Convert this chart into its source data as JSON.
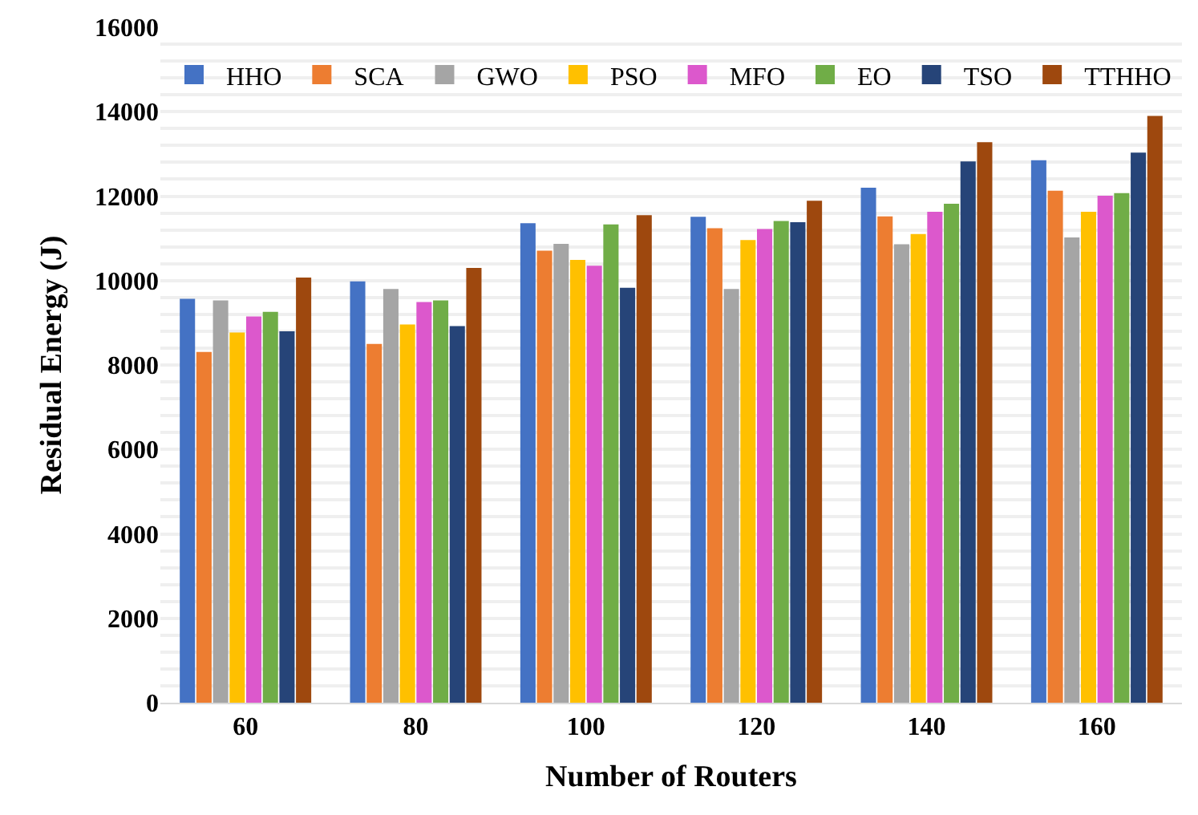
{
  "chart_data": {
    "type": "bar",
    "xlabel": "Number of Routers",
    "ylabel": "Residual Energy (J)",
    "categories": [
      "60",
      "80",
      "100",
      "120",
      "140",
      "160"
    ],
    "series": [
      {
        "name": "HHO",
        "color": "#4472c4",
        "values": [
          9570,
          9980,
          11360,
          11510,
          12200,
          12850
        ]
      },
      {
        "name": "SCA",
        "color": "#ed7d31",
        "values": [
          8310,
          8500,
          10710,
          11240,
          11520,
          12130
        ]
      },
      {
        "name": "GWO",
        "color": "#a5a5a5",
        "values": [
          9530,
          9800,
          10870,
          9800,
          10860,
          11020
        ]
      },
      {
        "name": "PSO",
        "color": "#ffc000",
        "values": [
          8770,
          8960,
          10490,
          10960,
          11100,
          11630
        ]
      },
      {
        "name": "MFO",
        "color": "#dc58cc",
        "values": [
          9150,
          9490,
          10350,
          11220,
          11630,
          12010
        ]
      },
      {
        "name": "EO",
        "color": "#70ad47",
        "values": [
          9260,
          9530,
          11330,
          11410,
          11820,
          12070
        ]
      },
      {
        "name": "TSO",
        "color": "#264478",
        "values": [
          8800,
          8920,
          9830,
          11380,
          12820,
          13030
        ]
      },
      {
        "name": "TTHHO",
        "color": "#9e480e",
        "values": [
          10070,
          10300,
          11550,
          11890,
          13280,
          13900
        ]
      }
    ],
    "ylim": [
      0,
      16000
    ],
    "yticks": [
      0,
      {
        "value": 400,
        "label": null
      },
      {
        "value": 800,
        "label": null
      },
      {
        "value": 1200,
        "label": null
      },
      {
        "value": 1600,
        "label": null
      },
      2000,
      {
        "value": 2400,
        "label": null
      },
      {
        "value": 2800,
        "label": null
      },
      {
        "value": 3200,
        "label": null
      },
      {
        "value": 3600,
        "label": null
      },
      4000,
      {
        "value": 4400,
        "label": null
      },
      {
        "value": 4800,
        "label": null
      },
      {
        "value": 5200,
        "label": null
      },
      {
        "value": 5600,
        "label": null
      },
      6000,
      {
        "value": 6400,
        "label": null
      },
      {
        "value": 6800,
        "label": null
      },
      {
        "value": 7200,
        "label": null
      },
      {
        "value": 7600,
        "label": null
      },
      8000,
      {
        "value": 8400,
        "label": null
      },
      {
        "value": 8800,
        "label": null
      },
      {
        "value": 9200,
        "label": null
      },
      {
        "value": 9600,
        "label": null
      },
      10000,
      {
        "value": 10400,
        "label": null
      },
      {
        "value": 10800,
        "label": null
      },
      {
        "value": 11200,
        "label": null
      },
      {
        "value": 11600,
        "label": null
      },
      12000,
      {
        "value": 12400,
        "label": null
      },
      {
        "value": 12800,
        "label": null
      },
      {
        "value": 13200,
        "label": null
      },
      {
        "value": 13600,
        "label": null
      },
      14000,
      {
        "value": 14400,
        "label": null
      },
      {
        "value": 14800,
        "label": null
      },
      {
        "value": 15200,
        "label": null
      },
      {
        "value": 15600,
        "label": null
      },
      16000
    ],
    "grid": "y",
    "legend": "top"
  }
}
